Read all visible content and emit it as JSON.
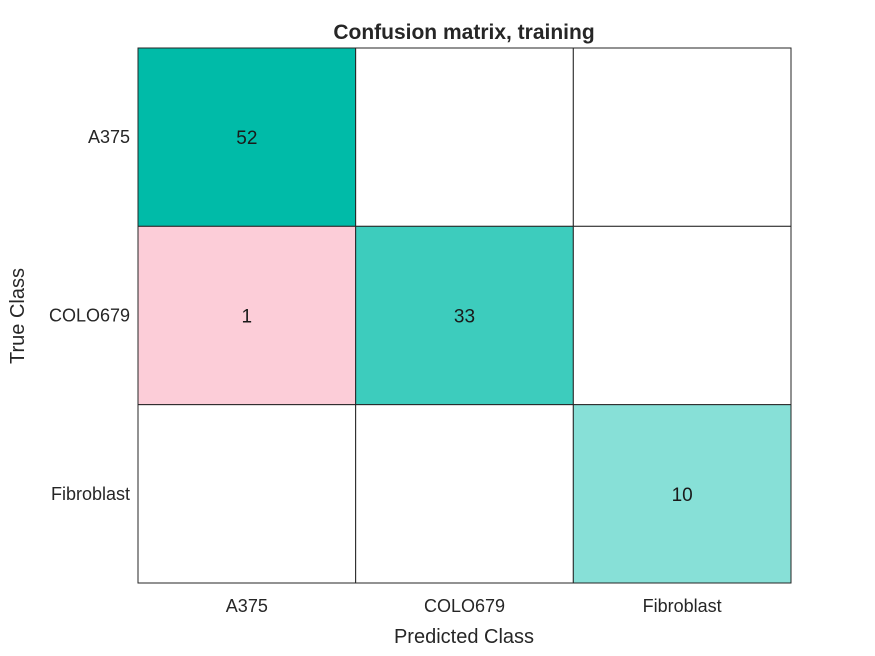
{
  "chart_data": {
    "type": "heatmap",
    "title": "Confusion matrix, training",
    "xlabel": "Predicted Class",
    "ylabel": "True Class",
    "x_categories": [
      "A375",
      "COLO679",
      "Fibroblast"
    ],
    "y_categories": [
      "A375",
      "COLO679",
      "Fibroblast"
    ],
    "matrix": [
      [
        52,
        0,
        0
      ],
      [
        1,
        33,
        0
      ],
      [
        0,
        0,
        10
      ]
    ],
    "grid": true,
    "legend": "none",
    "colors": {
      "diagonal_max": "#00bba8",
      "diagonal_min": "#a7e9e2",
      "off_diagonal_max": "#fccdd8",
      "off_diagonal_min": "#fef2f5",
      "empty": "#ffffff",
      "grid_line": "#262626"
    }
  }
}
